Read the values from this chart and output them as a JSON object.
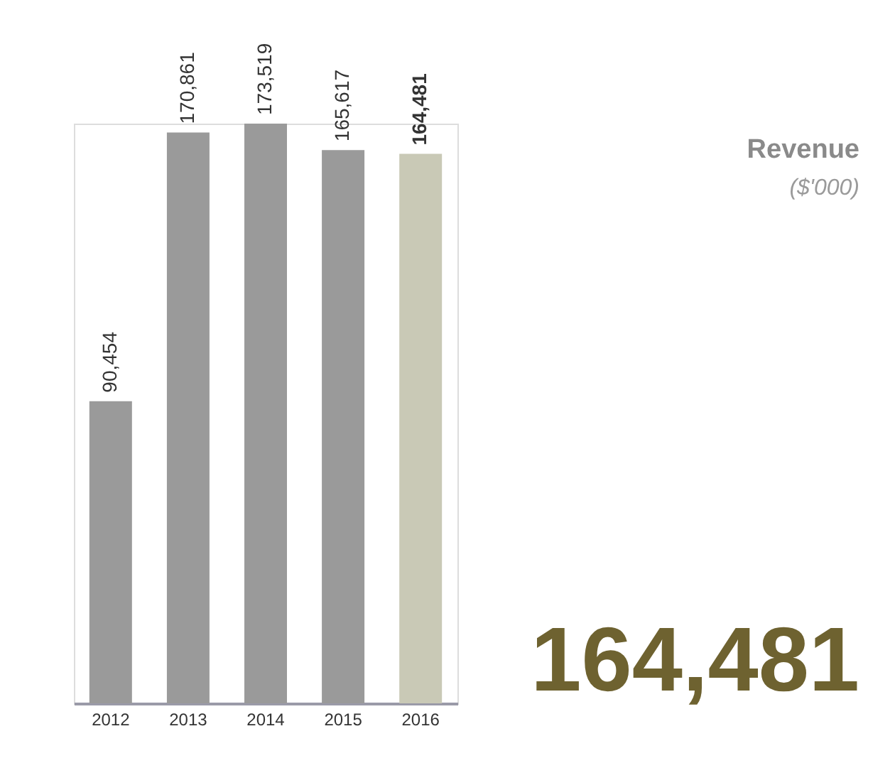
{
  "chart_data": {
    "type": "bar",
    "categories": [
      "2012",
      "2013",
      "2014",
      "2015",
      "2016"
    ],
    "values": [
      90454,
      170861,
      173519,
      165617,
      164481
    ],
    "colors": [
      "#9a9a9a",
      "#9a9a9a",
      "#9a9a9a",
      "#9a9a9a",
      "#c9c9b6"
    ],
    "value_labels": [
      "90,454",
      "170,861",
      "173,519",
      "165,617",
      "164,481"
    ],
    "grid": false,
    "legend": false,
    "annotations": [
      "Revenue",
      "($'000)",
      "164,481"
    ]
  }
}
